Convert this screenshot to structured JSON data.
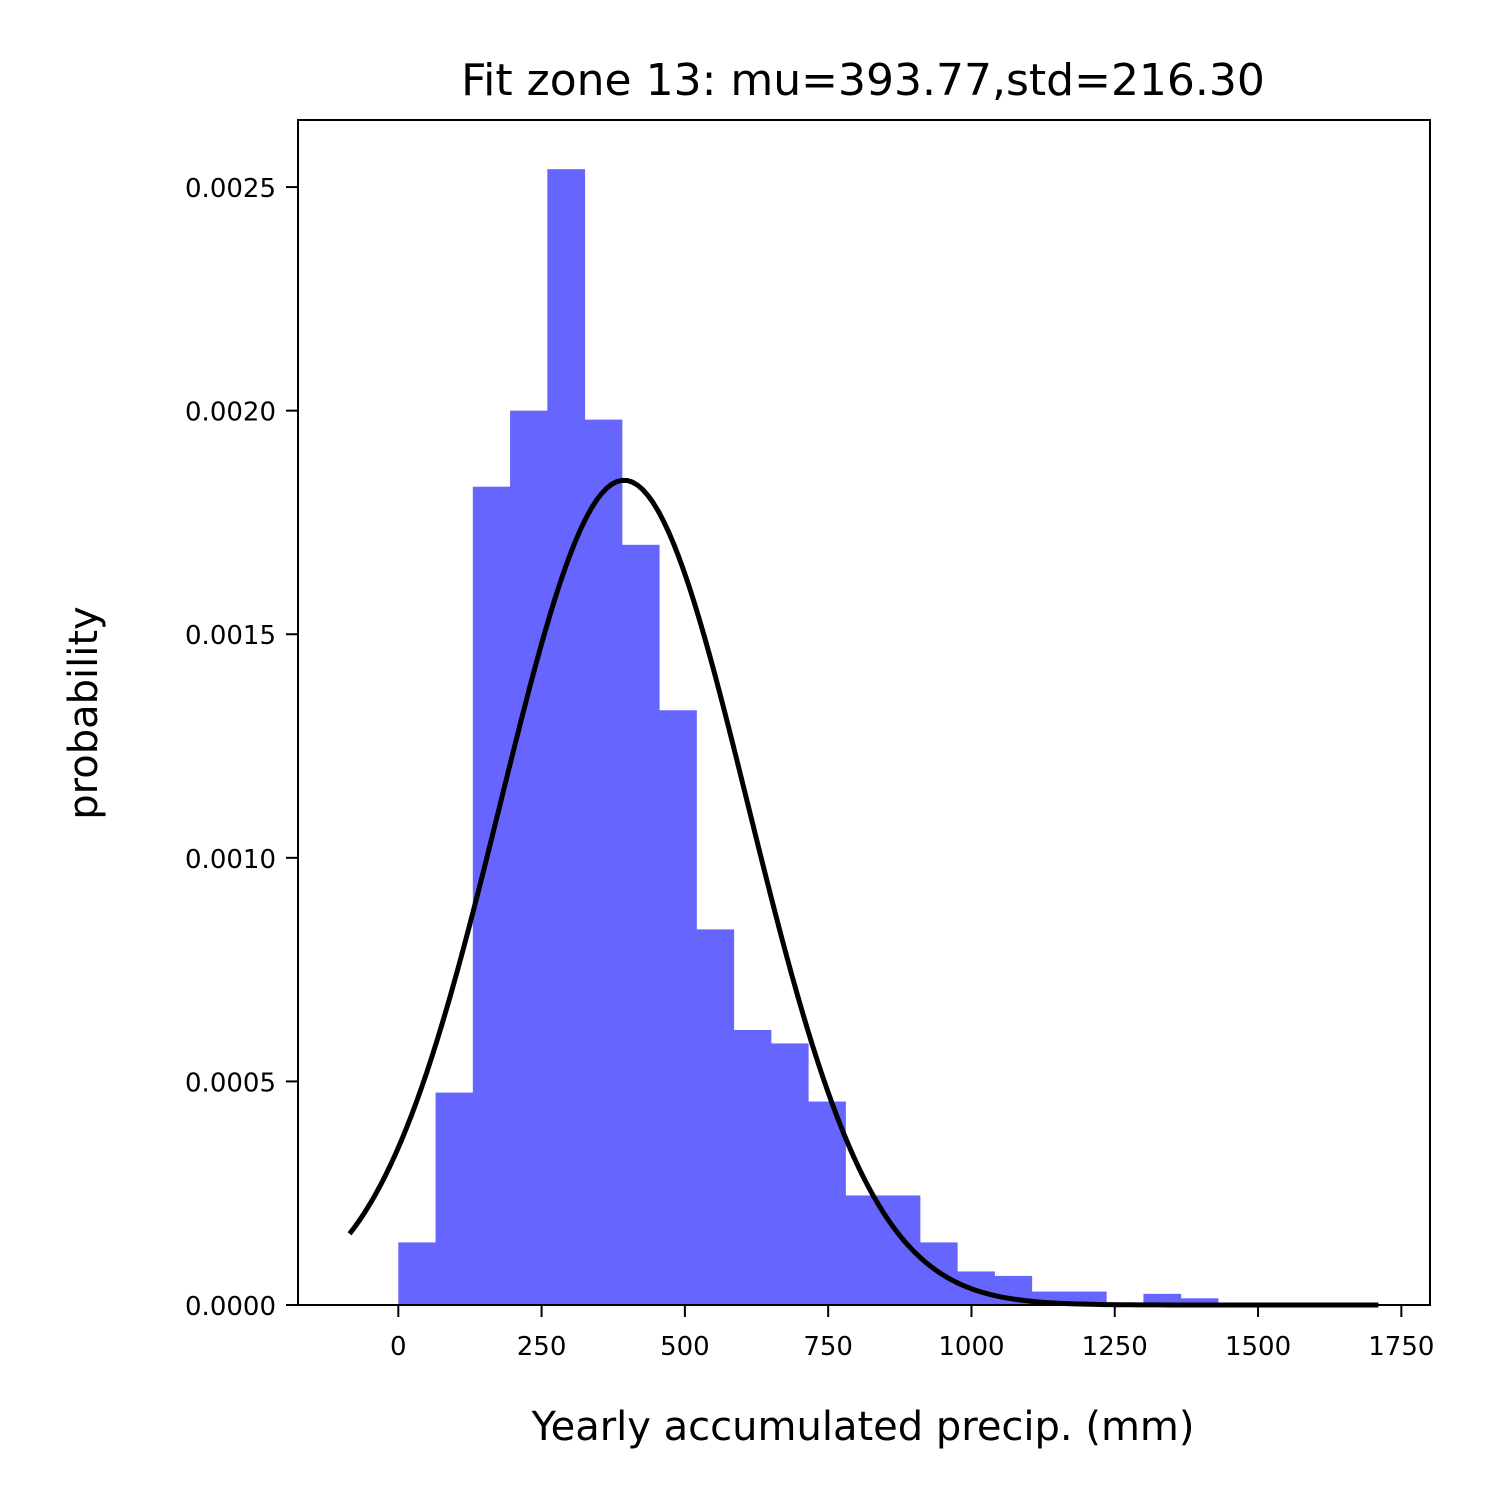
{
  "chart_data": {
    "type": "bar",
    "title": "Fit zone 13: mu=393.77,std=216.30",
    "xlabel": "Yearly accumulated precip. (mm)",
    "ylabel": "probability",
    "xlim": [
      -175,
      1800
    ],
    "ylim": [
      0,
      0.00265
    ],
    "x_ticks": [
      0,
      250,
      500,
      750,
      1000,
      1250,
      1500,
      1750
    ],
    "x_tick_labels": [
      "0",
      "250",
      "500",
      "750",
      "1000",
      "1250",
      "1500",
      "1750"
    ],
    "y_ticks": [
      0,
      0.0005,
      0.001,
      0.0015,
      0.002,
      0.0025
    ],
    "y_tick_labels": [
      "0.0000",
      "0.0005",
      "0.0010",
      "0.0015",
      "0.0020",
      "0.0025"
    ],
    "grid": false,
    "histogram": {
      "color": "#6666ff",
      "bin_edges": [
        0,
        65,
        130,
        195,
        260,
        325,
        390,
        455,
        520,
        585,
        650,
        715,
        780,
        845,
        910,
        975,
        1040,
        1105,
        1170,
        1235,
        1300,
        1365,
        1430
      ],
      "values": [
        0.00014,
        0.000475,
        0.00183,
        0.002,
        0.00254,
        0.00198,
        0.0017,
        0.00133,
        0.00084,
        0.000615,
        0.000585,
        0.000455,
        0.000245,
        0.000245,
        0.00014,
        7.5e-05,
        6.5e-05,
        3e-05,
        3e-05,
        0.0,
        2.5e-05,
        1.5e-05
      ]
    },
    "fit_curve": {
      "type": "normal-pdf",
      "mu": 393.77,
      "std": 216.3,
      "x_range": [
        -85,
        1710
      ],
      "color": "#000000"
    }
  }
}
